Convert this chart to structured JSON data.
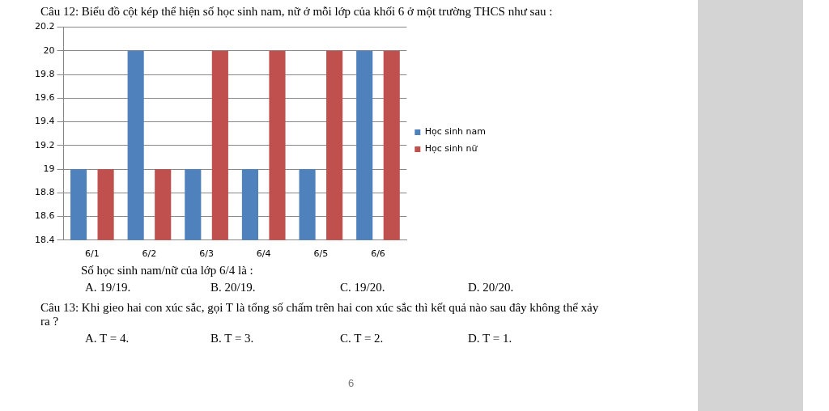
{
  "chart_data": {
    "type": "bar",
    "title": "Câu 12: Biểu đồ cột kép thể hiện số học sinh nam, nữ ở mỗi lớp của khối 6 ở một trường THCS như sau :",
    "categories": [
      "6/1",
      "6/2",
      "6/3",
      "6/4",
      "6/5",
      "6/6"
    ],
    "series": [
      {
        "name": "Học sinh nam",
        "color": "#4f81bd",
        "values": [
          19,
          20,
          19,
          19,
          19,
          20
        ]
      },
      {
        "name": "Học sinh nữ",
        "color": "#c0504d",
        "values": [
          19,
          19,
          20,
          20,
          20,
          20
        ]
      }
    ],
    "ylim": [
      18.4,
      20.2
    ],
    "yticks": [
      18.4,
      18.6,
      18.8,
      19,
      19.2,
      19.4,
      19.6,
      19.8,
      20,
      20.2
    ],
    "grid": "y",
    "legend": "right",
    "annotations": [
      "Số học sinh nam/nữ của lớp 6/4 là :",
      "A.  19/19.",
      "B. 20/19.",
      "C. 19/20.",
      "D. 20/20.",
      "Câu 13: Khi gieo hai con xúc sắc, gọi T là tổng số chấm trên hai con xúc sắc thì kết quả nào sau đây không thể xảy ra ?",
      "A.  T = 4.",
      "B.  T = 3.",
      "C.  T = 2.",
      "D.  T = 1.",
      "6"
    ]
  }
}
